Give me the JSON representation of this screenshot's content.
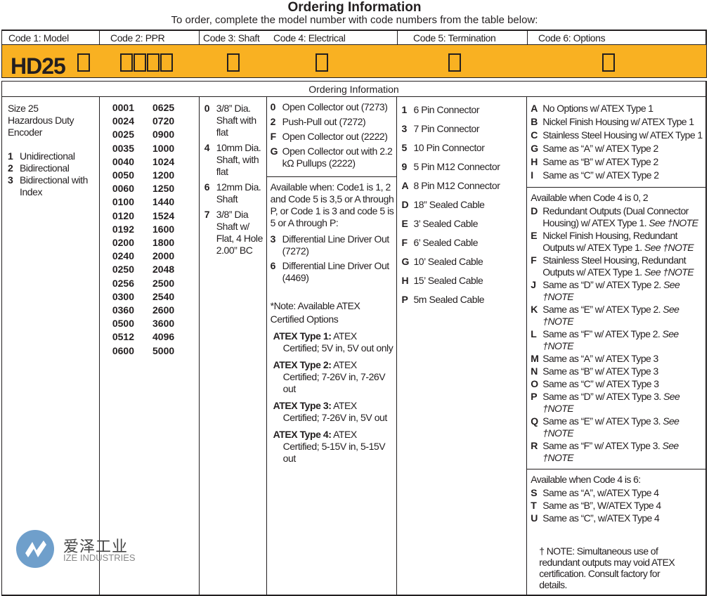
{
  "title": "Ordering Information",
  "subtitle": "To order, complete the model number with code numbers from the table below:",
  "headers": [
    "Code 1: Model",
    "Code 2: PPR",
    "Code 3: Shaft",
    "Code 4: Electrical",
    "Code 5: Termination",
    "Code 6: Options"
  ],
  "model_prefix": "HD25",
  "section_title": "Ordering Information",
  "model": {
    "desc": [
      "Size 25",
      "Hazardous Duty",
      "Encoder"
    ],
    "items": [
      {
        "code": "1",
        "text": "Unidirectional"
      },
      {
        "code": "2",
        "text": "Bidirectional"
      },
      {
        "code": "3",
        "text": "Bidirectional with Index"
      }
    ]
  },
  "ppr": {
    "col1": [
      "0001",
      "0024",
      "0025",
      "0035",
      "0040",
      "0050",
      "0060",
      "0100",
      "0120",
      "0192",
      "0200",
      "0240",
      "0250",
      "0256",
      "0300",
      "0360",
      "0500",
      "0512",
      "0600"
    ],
    "col2": [
      "0625",
      "0720",
      "0900",
      "1000",
      "1024",
      "1200",
      "1250",
      "1440",
      "1524",
      "1600",
      "1800",
      "2000",
      "2048",
      "2500",
      "2540",
      "2600",
      "3600",
      "4096",
      "5000"
    ]
  },
  "shaft": [
    {
      "code": "0",
      "text": "3/8” Dia. Shaft with flat"
    },
    {
      "code": "4",
      "text": "10mm Dia. Shaft, with flat"
    },
    {
      "code": "6",
      "text": "12mm Dia. Shaft"
    },
    {
      "code": "7",
      "text": "3/8” Dia Shaft w/ Flat, 4 Hole 2.00” BC"
    }
  ],
  "electrical": {
    "items": [
      {
        "code": "0",
        "text": "Open Collector out (7273)"
      },
      {
        "code": "2",
        "text": "Push-Pull out (7272)"
      },
      {
        "code": "F",
        "text": "Open Collector out (2222)"
      },
      {
        "code": "G",
        "text": "Open Collector out with 2.2 kΩ Pullups (2222)"
      }
    ],
    "available": "Available when: Code1 is 1, 2 and Code 5 is 3,5 or A through P, or Code 1 is 3 and code 5 is 5 or A through P:",
    "items2": [
      {
        "code": "3",
        "text": "Differential Line Driver Out (7272)"
      },
      {
        "code": "6",
        "text": "Differential Line Driver Out (4469)"
      }
    ],
    "note": "*Note: Available ATEX Certified Options",
    "atex": [
      {
        "label": "ATEX Type 1:",
        "text": "ATEX Certified; 5V in, 5V out only"
      },
      {
        "label": "ATEX Type 2:",
        "text": "ATEX Certified; 7-26V in, 7-26V out"
      },
      {
        "label": "ATEX Type 3:",
        "text": "ATEX Certified; 7-26V in, 5V out"
      },
      {
        "label": "ATEX Type 4:",
        "text": "ATEX Certified; 5-15V in, 5-15V out"
      }
    ]
  },
  "termination": [
    {
      "code": "1",
      "text": "6 Pin Connector"
    },
    {
      "code": "3",
      "text": "7 Pin Connector"
    },
    {
      "code": "5",
      "text": "10 Pin Connector"
    },
    {
      "code": "9",
      "text": "5 Pin M12 Connector"
    },
    {
      "code": "A",
      "text": "8 Pin M12 Connector"
    },
    {
      "code": "D",
      "text": "18” Sealed Cable"
    },
    {
      "code": "E",
      "text": "3’ Sealed Cable"
    },
    {
      "code": "F",
      "text": "6’ Sealed Cable"
    },
    {
      "code": "G",
      "text": "10’ Sealed Cable"
    },
    {
      "code": "H",
      "text": "15’ Sealed Cable"
    },
    {
      "code": "P",
      "text": "5m Sealed Cable"
    }
  ],
  "options": {
    "group1": [
      {
        "code": "A",
        "text": "No Options w/ ATEX Type 1"
      },
      {
        "code": "B",
        "text": "Nickel Finish Housing w/ ATEX Type 1"
      },
      {
        "code": "C",
        "text": "Stainless Steel Housing w/ ATEX Type 1"
      },
      {
        "code": "G",
        "text": "Same as “A” w/ ATEX Type 2"
      },
      {
        "code": "H",
        "text": "Same as “B” w/ ATEX Type 2"
      },
      {
        "code": "I",
        "text": "Same as “C” w/ ATEX Type 2"
      }
    ],
    "avail2": "Available when Code 4 is 0, 2",
    "group2": [
      {
        "code": "D",
        "text": "Redundant Outputs (Dual Connector Housing) w/ ATEX Type 1.",
        "see": "See †NOTE"
      },
      {
        "code": "E",
        "text": "Nickel Finish Housing, Redundant Outputs w/ ATEX Type 1.",
        "see": "See †NOTE"
      },
      {
        "code": "F",
        "text": "Stainless Steel Housing, Redundant Outputs w/ ATEX Type 1.",
        "see": "See †NOTE"
      },
      {
        "code": "J",
        "text": "Same as “D” w/ ATEX Type 2.",
        "see": "See †NOTE"
      },
      {
        "code": "K",
        "text": "Same as “E” w/ ATEX Type 2.",
        "see": "See †NOTE"
      },
      {
        "code": "L",
        "text": "Same as “F” w/ ATEX Type 2.",
        "see": "See †NOTE"
      },
      {
        "code": "M",
        "text": "Same as “A” w/ ATEX Type 3",
        "see": ""
      },
      {
        "code": "N",
        "text": "Same as “B” w/ ATEX Type 3",
        "see": ""
      },
      {
        "code": "O",
        "text": "Same as “C” w/ ATEX Type 3",
        "see": ""
      },
      {
        "code": "P",
        "text": "Same as “D” w/ ATEX Type 3.",
        "see": "See †NOTE"
      },
      {
        "code": "Q",
        "text": "Same as “E” w/ ATEX Type 3.",
        "see": "See †NOTE"
      },
      {
        "code": "R",
        "text": "Same as “F” w/ ATEX Type 3.",
        "see": "See †NOTE"
      }
    ],
    "avail3": "Available when Code 4 is 6:",
    "group3": [
      {
        "code": "S",
        "text": "Same as “A”, w/ATEX Type 4"
      },
      {
        "code": "T",
        "text": "Same as “B”, W/ATEX Type 4"
      },
      {
        "code": "U",
        "text": "Same as “C”, w/ATEX Type 4"
      }
    ],
    "footnote": "† NOTE: Simultaneous use of redundant outputs may void ATEX certification. Consult factory for details."
  },
  "watermark": {
    "cn": "爱泽工业",
    "en": "IZE INDUSTRIES",
    "color": "#6f9fcb"
  },
  "accent": "#f9b122"
}
